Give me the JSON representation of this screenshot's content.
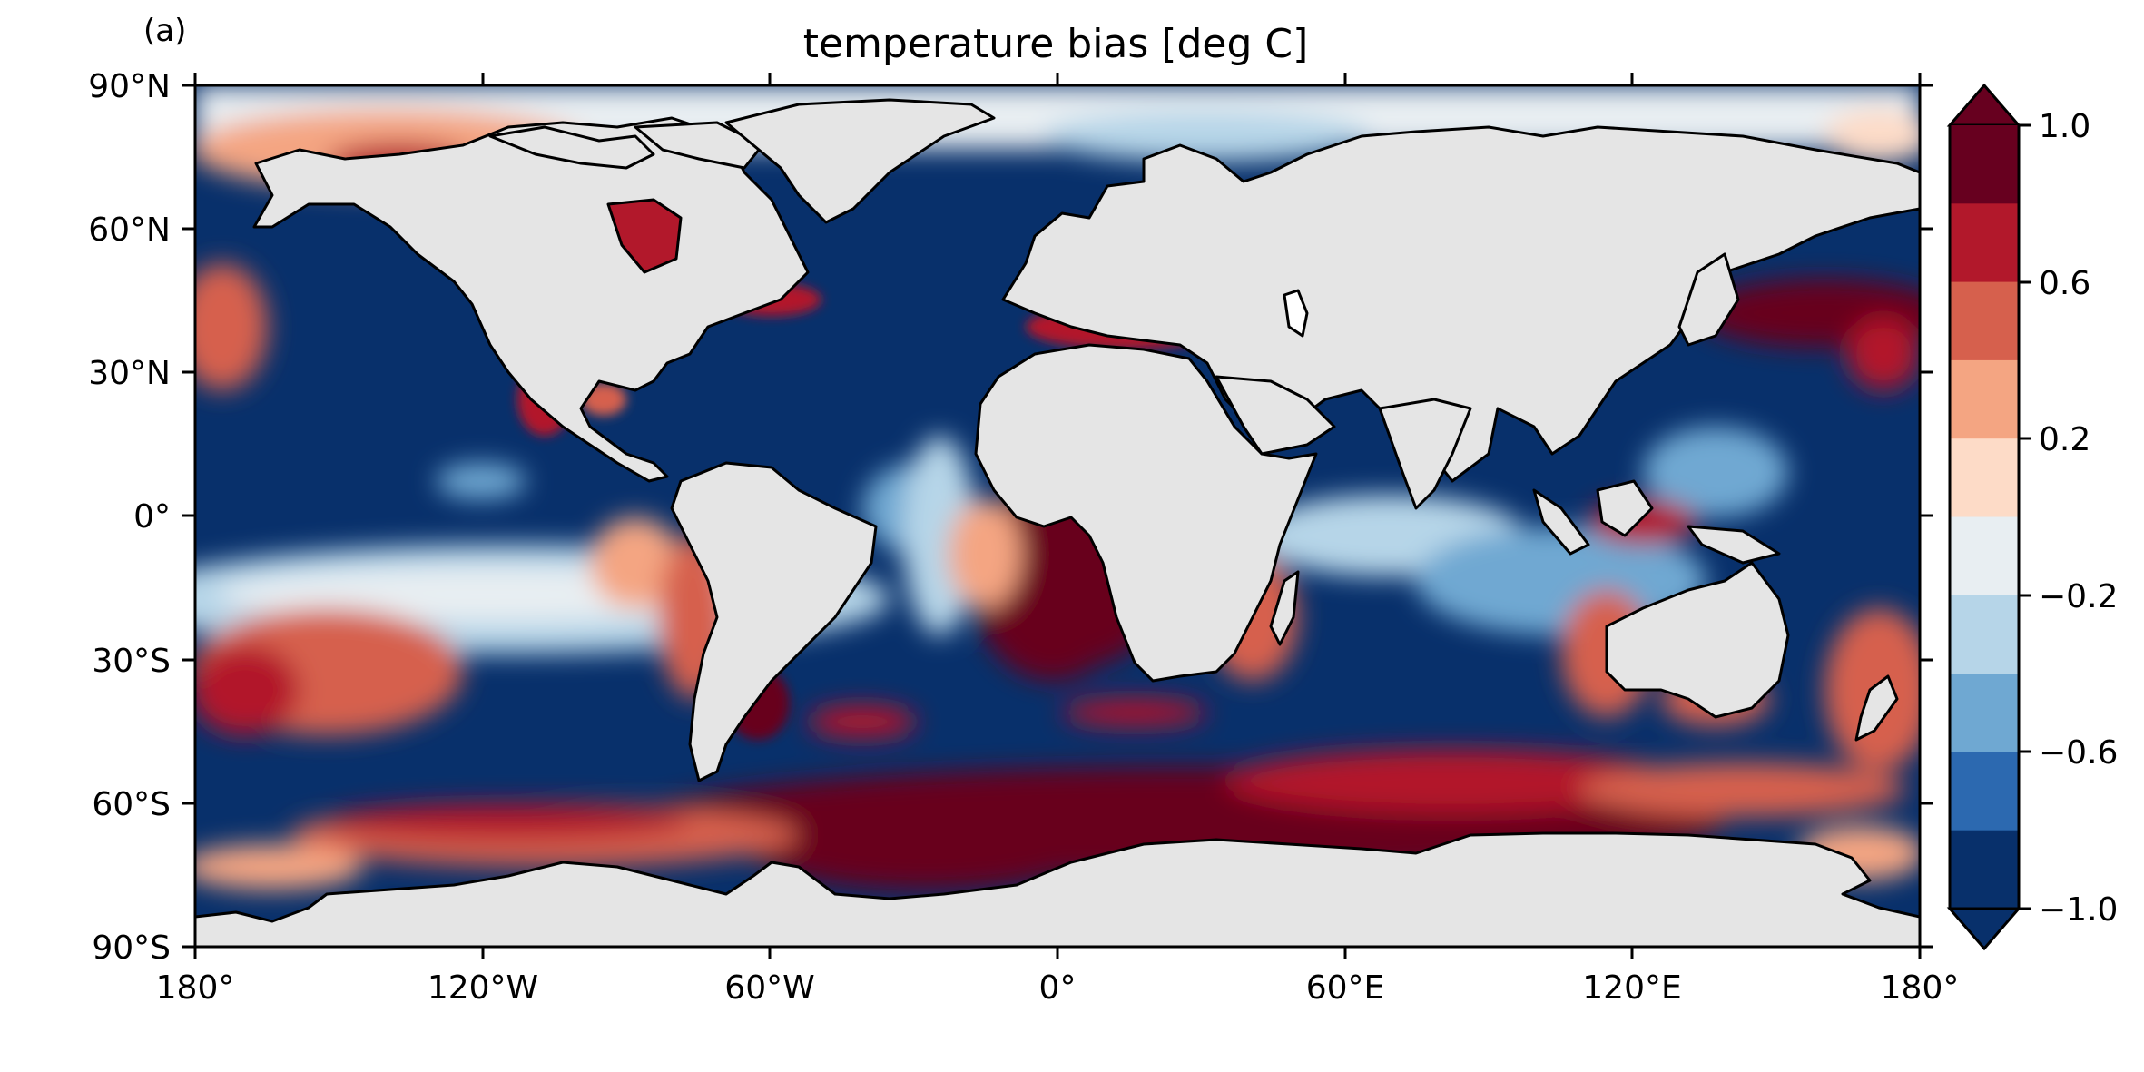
{
  "panel_label": "(a)",
  "title": "temperature bias [deg C]",
  "lat_ticks": [
    "90°N",
    "60°N",
    "30°N",
    "0°",
    "30°S",
    "60°S",
    "90°S"
  ],
  "lon_ticks": [
    "180°",
    "120°W",
    "60°W",
    "0°",
    "60°E",
    "120°E",
    "180°"
  ],
  "colorbar": {
    "min": -1.0,
    "max": 1.0,
    "extend": "both",
    "tick_labels": [
      "1.0",
      "0.6",
      "0.2",
      "−0.2",
      "−0.6",
      "−1.0"
    ],
    "colors_top_to_bottom": [
      "#67001f",
      "#b2182b",
      "#d6604d",
      "#f4a582",
      "#fddbc7",
      "#e8eef2",
      "#b6d5e8",
      "#6fa8d2",
      "#2c69b0",
      "#08306b"
    ],
    "extend_top_color": "#67001f",
    "extend_bottom_color": "#08306b"
  },
  "colors": {
    "land": "#e5e5e5",
    "ocean_base": "#08306b",
    "coast": "#000000"
  }
}
